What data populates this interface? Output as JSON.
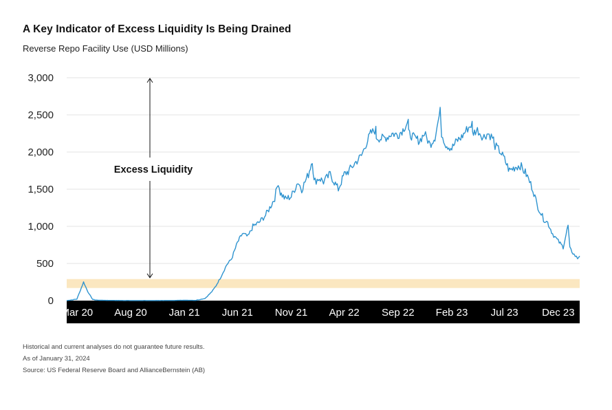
{
  "chart_data": {
    "type": "line",
    "title": "A Key Indicator of Excess Liquidity Is Being Drained",
    "subtitle": "Reverse Repo Facility Use (USD Millions)",
    "xlabel": "",
    "ylabel": "",
    "ylim": [
      0,
      3000
    ],
    "xlim": [
      "2020-02",
      "2024-01"
    ],
    "y_ticks": [
      0,
      500,
      1000,
      1500,
      2000,
      2500,
      3000
    ],
    "y_tick_labels": [
      "0",
      "500",
      "1,000",
      "1,500",
      "2,000",
      "2,500",
      "3,000"
    ],
    "x_ticks": [
      {
        "date": "2020-03",
        "label": "Mar 20"
      },
      {
        "date": "2020-08",
        "label": "Aug 20"
      },
      {
        "date": "2021-01",
        "label": "Jan 21"
      },
      {
        "date": "2021-06",
        "label": "Jun 21"
      },
      {
        "date": "2021-11",
        "label": "Nov 21"
      },
      {
        "date": "2022-04",
        "label": "Apr 22"
      },
      {
        "date": "2022-09",
        "label": "Sep 22"
      },
      {
        "date": "2023-02",
        "label": "Feb 23"
      },
      {
        "date": "2023-07",
        "label": "Jul 23"
      },
      {
        "date": "2023-12",
        "label": "Dec 23"
      }
    ],
    "grid": true,
    "band": {
      "y": [
        170,
        290
      ],
      "color": "#fbe7c0"
    },
    "annotation": {
      "text": "Excess Liquidity",
      "arrow_from": 3000,
      "arrow_to": 280
    },
    "series": [
      {
        "color": "#2e93cf",
        "points": [
          [
            "2020-02",
            0
          ],
          [
            "2020-03",
            20
          ],
          [
            "2020-03-20",
            250
          ],
          [
            "2020-04",
            120
          ],
          [
            "2020-04-15",
            15
          ],
          [
            "2020-05",
            5
          ],
          [
            "2020-06",
            3
          ],
          [
            "2020-08",
            1
          ],
          [
            "2020-10",
            1
          ],
          [
            "2020-12",
            2
          ],
          [
            "2021-01",
            5
          ],
          [
            "2021-02",
            3
          ],
          [
            "2021-03",
            30
          ],
          [
            "2021-03-20",
            120
          ],
          [
            "2021-04",
            200
          ],
          [
            "2021-04-15",
            320
          ],
          [
            "2021-05",
            480
          ],
          [
            "2021-05-15",
            560
          ],
          [
            "2021-06",
            780
          ],
          [
            "2021-06-15",
            900
          ],
          [
            "2021-07",
            860
          ],
          [
            "2021-07-15",
            1000
          ],
          [
            "2021-08",
            1050
          ],
          [
            "2021-08-20",
            1150
          ],
          [
            "2021-09",
            1250
          ],
          [
            "2021-09-15",
            1380
          ],
          [
            "2021-09-25",
            1600
          ],
          [
            "2021-10",
            1450
          ],
          [
            "2021-10-15",
            1370
          ],
          [
            "2021-11",
            1400
          ],
          [
            "2021-11-20",
            1600
          ],
          [
            "2021-12",
            1500
          ],
          [
            "2021-12-20",
            1700
          ],
          [
            "2021-12-31",
            1900
          ],
          [
            "2022-01-05",
            1600
          ],
          [
            "2022-01-20",
            1650
          ],
          [
            "2022-02",
            1600
          ],
          [
            "2022-02-20",
            1700
          ],
          [
            "2022-03",
            1620
          ],
          [
            "2022-03-15",
            1500
          ],
          [
            "2022-04",
            1700
          ],
          [
            "2022-04-15",
            1750
          ],
          [
            "2022-05",
            1850
          ],
          [
            "2022-05-20",
            1950
          ],
          [
            "2022-06",
            2100
          ],
          [
            "2022-06-15",
            2250
          ],
          [
            "2022-06-30",
            2300
          ],
          [
            "2022-07",
            2200
          ],
          [
            "2022-07-15",
            2180
          ],
          [
            "2022-08",
            2200
          ],
          [
            "2022-08-15",
            2250
          ],
          [
            "2022-09",
            2230
          ],
          [
            "2022-09-15",
            2300
          ],
          [
            "2022-09-30",
            2420
          ],
          [
            "2022-10",
            2250
          ],
          [
            "2022-10-15",
            2200
          ],
          [
            "2022-11",
            2150
          ],
          [
            "2022-11-15",
            2250
          ],
          [
            "2022-12",
            2100
          ],
          [
            "2022-12-15",
            2200
          ],
          [
            "2022-12-30",
            2550
          ],
          [
            "2023-01-03",
            2250
          ],
          [
            "2023-01-15",
            2100
          ],
          [
            "2023-02",
            2050
          ],
          [
            "2023-02-15",
            2150
          ],
          [
            "2023-03",
            2200
          ],
          [
            "2023-03-15",
            2300
          ],
          [
            "2023-03-31",
            2380
          ],
          [
            "2023-04",
            2250
          ],
          [
            "2023-04-15",
            2300
          ],
          [
            "2023-05",
            2200
          ],
          [
            "2023-05-15",
            2250
          ],
          [
            "2023-05-31",
            2180
          ],
          [
            "2023-06",
            2100
          ],
          [
            "2023-06-20",
            2000
          ],
          [
            "2023-07",
            1900
          ],
          [
            "2023-07-15",
            1750
          ],
          [
            "2023-08",
            1800
          ],
          [
            "2023-08-15",
            1820
          ],
          [
            "2023-09",
            1700
          ],
          [
            "2023-09-20",
            1500
          ],
          [
            "2023-10",
            1300
          ],
          [
            "2023-10-20",
            1100
          ],
          [
            "2023-11",
            1050
          ],
          [
            "2023-11-15",
            900
          ],
          [
            "2023-12",
            800
          ],
          [
            "2023-12-15",
            720
          ],
          [
            "2023-12-29",
            1010
          ],
          [
            "2024-01-03",
            700
          ],
          [
            "2024-01-15",
            620
          ],
          [
            "2024-01-25",
            570
          ],
          [
            "2024-01-31",
            600
          ]
        ]
      }
    ]
  },
  "footnotes": [
    "Historical and current analyses do not guarantee future results.",
    "As of January 31, 2024",
    "Source: US Federal Reserve Board and AllianceBernstein (AB)"
  ]
}
